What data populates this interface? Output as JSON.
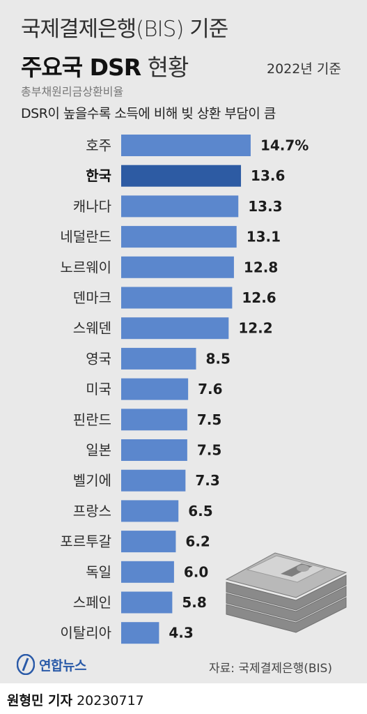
{
  "header": {
    "title_line1": "국제결제은행(BIS) 기준",
    "title_bold": "주요국 DSR",
    "title_light": "현황",
    "basis": "2022년 기준",
    "subtitle": "총부채원리금상환비율",
    "description": "DSR이 높을수록 소득에 비해 빚 상환 부담이 큼"
  },
  "chart_data": {
    "type": "bar",
    "orientation": "horizontal",
    "categories": [
      "호주",
      "한국",
      "캐나다",
      "네덜란드",
      "노르웨이",
      "덴마크",
      "스웨덴",
      "영국",
      "미국",
      "핀란드",
      "일본",
      "벨기에",
      "프랑스",
      "포르투갈",
      "독일",
      "스페인",
      "이탈리아"
    ],
    "values": [
      14.7,
      13.6,
      13.3,
      13.1,
      12.8,
      12.6,
      12.2,
      8.5,
      7.6,
      7.5,
      7.5,
      7.3,
      6.5,
      6.2,
      6.0,
      5.8,
      4.3
    ],
    "value_labels": [
      "14.7%",
      "13.6",
      "13.3",
      "13.1",
      "12.8",
      "12.6",
      "12.2",
      "8.5",
      "7.6",
      "7.5",
      "7.5",
      "7.3",
      "6.5",
      "6.2",
      "6.0",
      "5.8",
      "4.3"
    ],
    "highlight": "한국",
    "colors": {
      "bar": "#5b87cd",
      "highlight": "#2d5ba3"
    }
  },
  "footer": {
    "brand": "연합뉴스",
    "source": "자료: 국제결제은행(BIS)",
    "reporter": "원형민 기자",
    "date": "20230717"
  }
}
